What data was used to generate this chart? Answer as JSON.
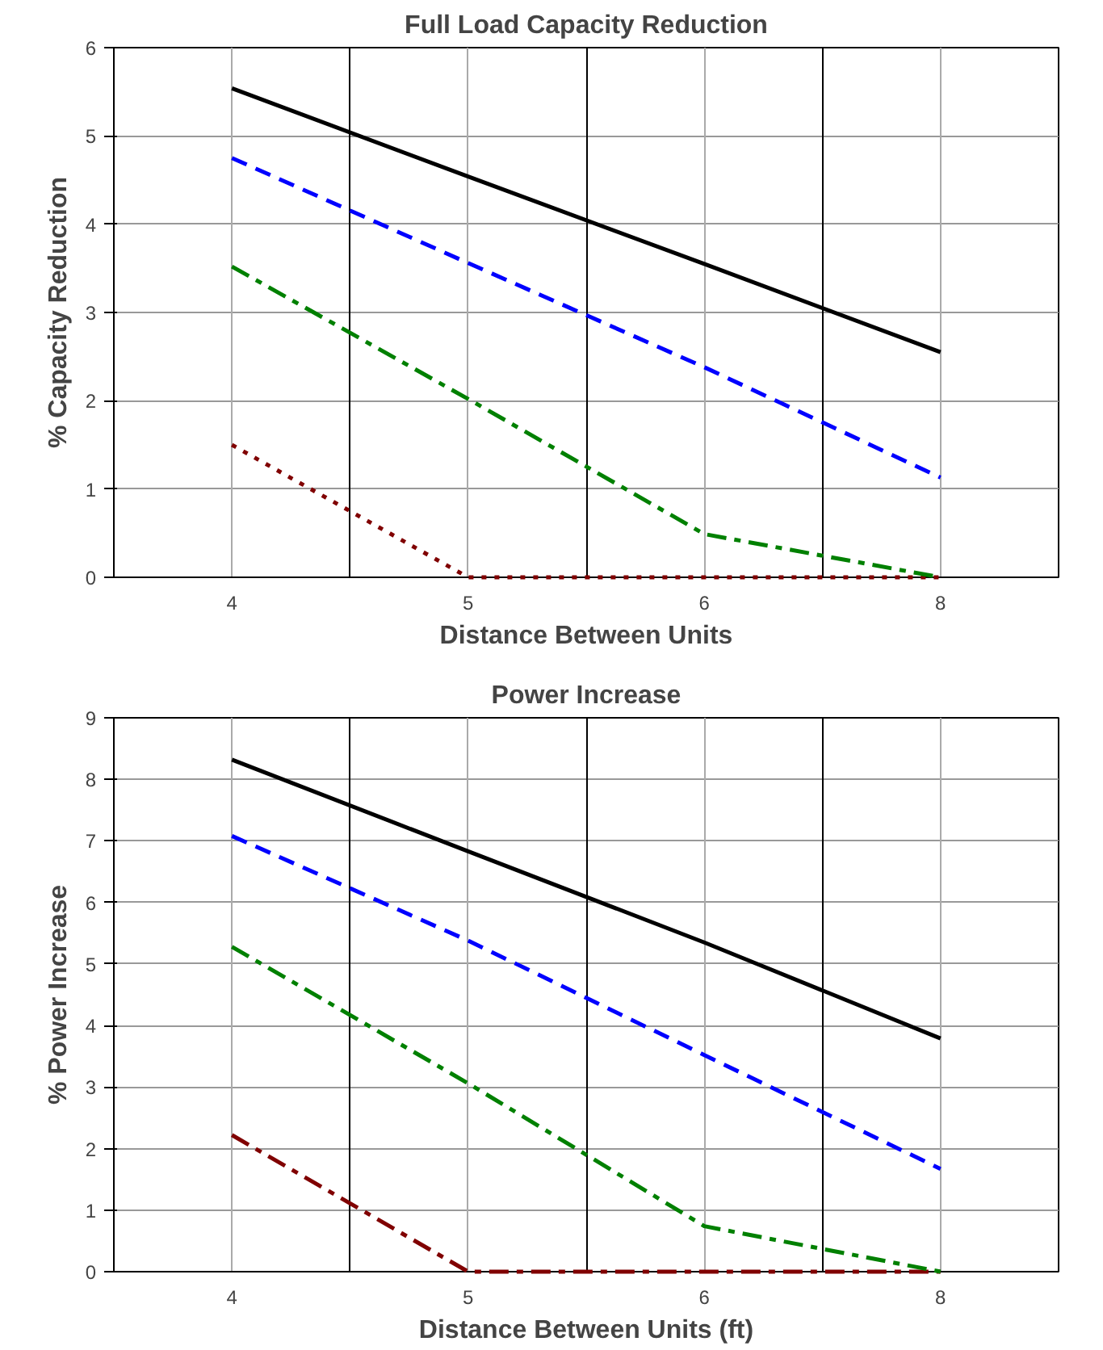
{
  "chart_data": [
    {
      "type": "line",
      "title": "Full Load Capacity Reduction",
      "xlabel": "Distance Between Units",
      "ylabel": "% Capacity Reduction",
      "categories": [
        "4",
        "5",
        "6",
        "8"
      ],
      "ylim": [
        0,
        6
      ],
      "yticks": [
        0,
        1,
        2,
        3,
        4,
        5,
        6
      ],
      "grid": true,
      "series": [
        {
          "color": "#800000",
          "line_style": "dotted",
          "values": [
            1.5,
            0,
            0,
            0
          ]
        },
        {
          "color": "#008000",
          "line_style": "dashdot",
          "values": [
            3.52,
            2.02,
            0.49,
            0
          ]
        },
        {
          "color": "#0000ff",
          "line_style": "dashed",
          "values": [
            4.75,
            3.56,
            2.38,
            1.13
          ]
        },
        {
          "color": "#000000",
          "line_style": "solid",
          "values": [
            5.54,
            4.54,
            3.55,
            2.55
          ]
        }
      ]
    },
    {
      "type": "line",
      "title": "Power Increase",
      "xlabel": "Distance Between Units (ft)",
      "ylabel": "% Power Increase",
      "categories": [
        "4",
        "5",
        "6",
        "8"
      ],
      "ylim": [
        0,
        9
      ],
      "yticks": [
        0,
        1,
        2,
        3,
        4,
        5,
        6,
        7,
        8,
        9
      ],
      "grid": true,
      "series": [
        {
          "color": "#800000",
          "line_style": "dashdot",
          "values": [
            2.22,
            0,
            0,
            0
          ]
        },
        {
          "color": "#008000",
          "line_style": "dashdot",
          "values": [
            5.28,
            3.06,
            0.74,
            0
          ]
        },
        {
          "color": "#0000ff",
          "line_style": "dashed",
          "values": [
            7.08,
            5.38,
            3.52,
            1.67
          ]
        },
        {
          "color": "#000000",
          "line_style": "solid",
          "values": [
            8.32,
            6.83,
            5.35,
            3.79
          ]
        }
      ]
    }
  ]
}
